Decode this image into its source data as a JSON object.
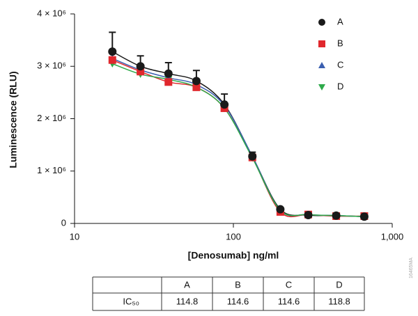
{
  "chart_data": {
    "type": "scatter",
    "x_label": "[Denosumab] ng/ml",
    "y_label": "Luminescence (RLU)",
    "x_scale": "log",
    "x": [
      17.3,
      26,
      39,
      58.5,
      87.8,
      131.7,
      197.5,
      296,
      444,
      667
    ],
    "xlim": [
      10,
      1000
    ],
    "xticks": [
      10,
      100,
      {
        "value": 1000,
        "label": "1,000"
      }
    ],
    "ylim": [
      0,
      4000000
    ],
    "yticks": [
      0,
      {
        "value": 1000000,
        "label": "1 × 10⁶"
      },
      {
        "value": 2000000,
        "label": "2 × 10⁶"
      },
      {
        "value": 3000000,
        "label": "3 × 10⁶"
      },
      {
        "value": 4000000,
        "label": "4 × 10⁶"
      }
    ],
    "legend_position": "upper right",
    "series": [
      {
        "name": "A",
        "color": "#1a1a1a",
        "marker": "circle",
        "values": [
          3280000,
          3000000,
          2860000,
          2720000,
          2270000,
          1280000,
          270000,
          160000,
          150000,
          130000
        ],
        "errors": [
          370000,
          200000,
          210000,
          200000,
          200000,
          80000,
          null,
          null,
          null,
          null
        ]
      },
      {
        "name": "B",
        "color": "#e0282d",
        "marker": "square",
        "values": [
          3120000,
          2900000,
          2700000,
          2600000,
          2200000,
          1260000,
          220000,
          170000,
          140000,
          140000
        ]
      },
      {
        "name": "C",
        "color": "#3a5fb0",
        "marker": "triangle",
        "values": [
          3150000,
          2930000,
          2780000,
          2650000,
          2250000,
          1280000,
          250000,
          170000,
          150000,
          130000
        ]
      },
      {
        "name": "D",
        "color": "#2eaa4a",
        "marker": "triangle-down",
        "values": [
          3050000,
          2850000,
          2750000,
          2600000,
          2200000,
          1250000,
          250000,
          170000,
          150000,
          130000
        ]
      }
    ]
  },
  "table": {
    "header": [
      "A",
      "B",
      "C",
      "D"
    ],
    "row_label": "IC₅₀",
    "row": [
      114.8,
      114.6,
      114.6,
      118.8
    ]
  },
  "figure_id": "16465MA"
}
